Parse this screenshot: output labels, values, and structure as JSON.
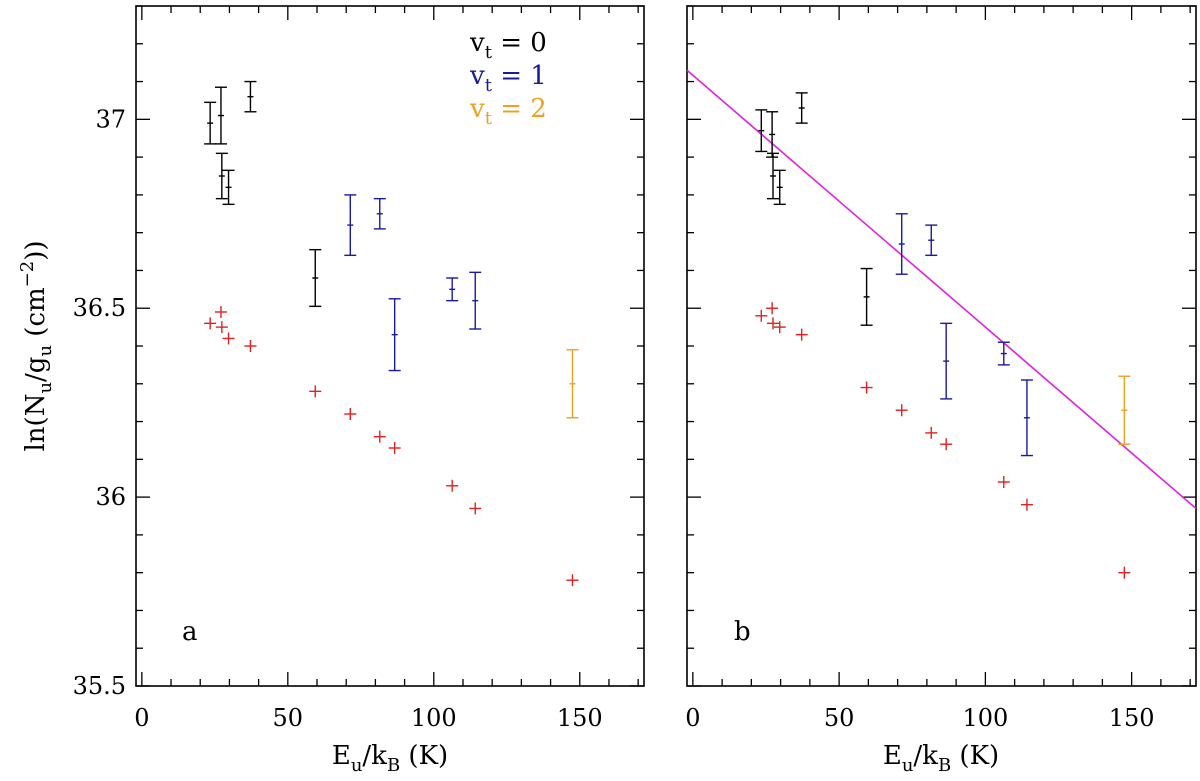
{
  "chart_data": [
    {
      "type": "scatter",
      "panel_label": "a",
      "xlabel": "E_u/k_B (K)",
      "ylabel": "ln(N_u/g_u (cm^-2))",
      "xlim": [
        -2,
        172
      ],
      "ylim": [
        35.5,
        37.3
      ],
      "x_ticks": [
        "0",
        "50",
        "100",
        "150"
      ],
      "y_ticks": [
        "35.5",
        "36",
        "36.5",
        "37"
      ],
      "legend": [
        {
          "label": "v_t = 0",
          "color": "#000000"
        },
        {
          "label": "v_t = 1",
          "color": "#1a1aa0"
        },
        {
          "label": "v_t = 2",
          "color": "#f0a020"
        }
      ],
      "series": [
        {
          "color": "#000000",
          "style": "errorbar",
          "points": [
            {
              "x": 23.4,
              "y": 36.99,
              "err": 0.055
            },
            {
              "x": 27.1,
              "y": 37.01,
              "err": 0.075
            },
            {
              "x": 27.4,
              "y": 36.85,
              "err": 0.06
            },
            {
              "x": 29.7,
              "y": 36.82,
              "err": 0.045
            },
            {
              "x": 37.2,
              "y": 37.06,
              "err": 0.04
            },
            {
              "x": 59.4,
              "y": 36.58,
              "err": 0.075
            }
          ]
        },
        {
          "color": "#1a1aa0",
          "style": "errorbar",
          "points": [
            {
              "x": 71.4,
              "y": 36.72,
              "err": 0.08
            },
            {
              "x": 81.5,
              "y": 36.75,
              "err": 0.04
            },
            {
              "x": 86.6,
              "y": 36.43,
              "err": 0.095
            },
            {
              "x": 106.3,
              "y": 36.55,
              "err": 0.03
            },
            {
              "x": 114.2,
              "y": 36.52,
              "err": 0.075
            }
          ]
        },
        {
          "color": "#f0a020",
          "style": "errorbar",
          "points": [
            {
              "x": 147.5,
              "y": 36.3,
              "err": 0.09
            }
          ]
        },
        {
          "color": "#e02020",
          "style": "plus",
          "points": [
            {
              "x": 23.4,
              "y": 36.46
            },
            {
              "x": 27.1,
              "y": 36.49
            },
            {
              "x": 27.4,
              "y": 36.45
            },
            {
              "x": 29.7,
              "y": 36.42
            },
            {
              "x": 37.2,
              "y": 36.4
            },
            {
              "x": 59.4,
              "y": 36.28
            },
            {
              "x": 71.4,
              "y": 36.22
            },
            {
              "x": 81.5,
              "y": 36.16
            },
            {
              "x": 86.6,
              "y": 36.13
            },
            {
              "x": 106.3,
              "y": 36.03
            },
            {
              "x": 114.2,
              "y": 35.97
            },
            {
              "x": 147.5,
              "y": 35.78
            }
          ]
        }
      ]
    },
    {
      "type": "scatter",
      "panel_label": "b",
      "xlabel": "E_u/k_B (K)",
      "xlim": [
        -2,
        172
      ],
      "ylim": [
        35.5,
        37.3
      ],
      "x_ticks": [
        "0",
        "50",
        "100",
        "150"
      ],
      "fit_line": {
        "color": "#e020e0",
        "points": [
          {
            "x": -2,
            "y": 37.13
          },
          {
            "x": 172,
            "y": 35.97
          }
        ]
      },
      "series": [
        {
          "color": "#000000",
          "style": "errorbar",
          "points": [
            {
              "x": 23.4,
              "y": 36.97,
              "err": 0.055
            },
            {
              "x": 27.1,
              "y": 36.96,
              "err": 0.06
            },
            {
              "x": 27.4,
              "y": 36.85,
              "err": 0.06
            },
            {
              "x": 29.7,
              "y": 36.82,
              "err": 0.045
            },
            {
              "x": 37.2,
              "y": 37.03,
              "err": 0.04
            },
            {
              "x": 59.4,
              "y": 36.53,
              "err": 0.075
            }
          ]
        },
        {
          "color": "#1a1aa0",
          "style": "errorbar",
          "points": [
            {
              "x": 71.4,
              "y": 36.67,
              "err": 0.08
            },
            {
              "x": 81.5,
              "y": 36.68,
              "err": 0.04
            },
            {
              "x": 86.6,
              "y": 36.36,
              "err": 0.1
            },
            {
              "x": 106.3,
              "y": 36.38,
              "err": 0.03
            },
            {
              "x": 114.2,
              "y": 36.21,
              "err": 0.1
            }
          ]
        },
        {
          "color": "#f0a020",
          "style": "errorbar",
          "points": [
            {
              "x": 147.5,
              "y": 36.23,
              "err": 0.09
            }
          ]
        },
        {
          "color": "#e02020",
          "style": "plus",
          "points": [
            {
              "x": 23.4,
              "y": 36.48
            },
            {
              "x": 27.1,
              "y": 36.5
            },
            {
              "x": 27.4,
              "y": 36.46
            },
            {
              "x": 29.7,
              "y": 36.45
            },
            {
              "x": 37.2,
              "y": 36.43
            },
            {
              "x": 59.4,
              "y": 36.29
            },
            {
              "x": 71.4,
              "y": 36.23
            },
            {
              "x": 81.5,
              "y": 36.17
            },
            {
              "x": 86.6,
              "y": 36.14
            },
            {
              "x": 106.3,
              "y": 36.04
            },
            {
              "x": 114.2,
              "y": 35.98
            },
            {
              "x": 147.5,
              "y": 35.8
            }
          ]
        }
      ]
    }
  ]
}
